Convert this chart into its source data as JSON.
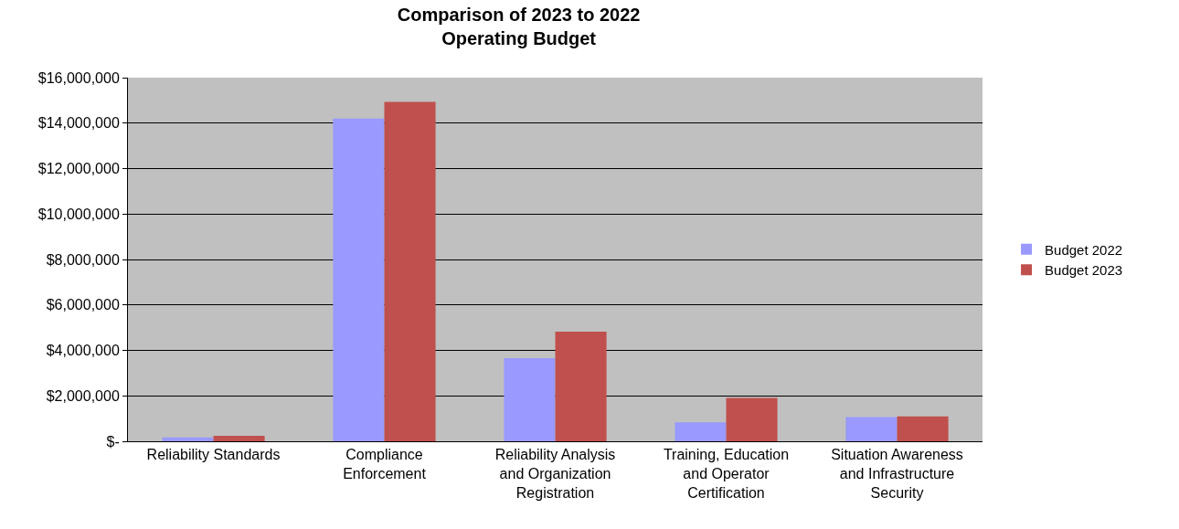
{
  "chart_data": {
    "type": "bar",
    "title": "Comparison of 2023 to 2022\nOperating Budget",
    "categories": [
      "Reliability Standards",
      "Compliance Enforcement",
      "Reliability Analysis and Organization Registration",
      "Training, Education and Operator Certification",
      "Situation Awareness and Infrastructure Security"
    ],
    "series": [
      {
        "name": "Budget 2022",
        "color": "#9999ff",
        "values": [
          170000,
          14200000,
          3660000,
          830000,
          1070000
        ]
      },
      {
        "name": "Budget 2023",
        "color": "#c0504d",
        "values": [
          240000,
          14930000,
          4820000,
          1910000,
          1100000
        ]
      }
    ],
    "ylim": [
      0,
      16000000
    ],
    "yticks": [
      {
        "value": 0,
        "label": "$-"
      },
      {
        "value": 2000000,
        "label": "$2,000,000"
      },
      {
        "value": 4000000,
        "label": "$4,000,000"
      },
      {
        "value": 6000000,
        "label": "$6,000,000"
      },
      {
        "value": 8000000,
        "label": "$8,000,000"
      },
      {
        "value": 10000000,
        "label": "$10,000,000"
      },
      {
        "value": 12000000,
        "label": "$12,000,000"
      },
      {
        "value": 14000000,
        "label": "$14,000,000"
      },
      {
        "value": 16000000,
        "label": "$16,000,000"
      }
    ],
    "grid": "y",
    "legend": "right"
  }
}
